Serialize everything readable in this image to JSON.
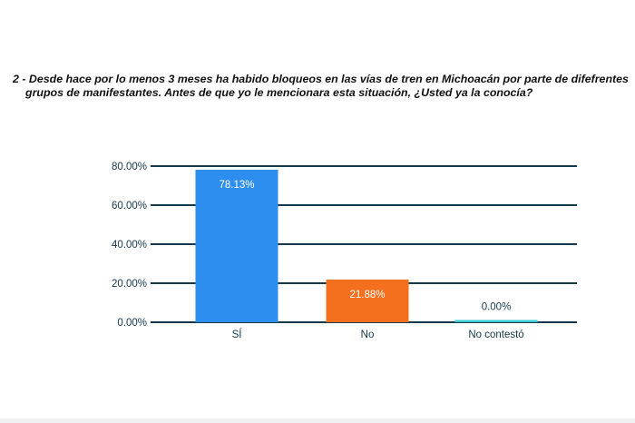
{
  "question": {
    "line1": "2 - Desde hace por lo menos 3 meses ha habido bloqueos en las vías de tren en Michoacán por parte de difefrentes",
    "line2": "grupos de manifestantes. Antes de que yo le mencionara esta situación, ¿Usted ya la conocía?"
  },
  "colors": {
    "gridline": "#14394b",
    "axis_text": "#14394b",
    "bar_label_on_bar": "#ffffff",
    "bar_label_above": "#14394b"
  },
  "chart_data": {
    "type": "bar",
    "categories": [
      "SÍ",
      "No",
      "No contestó"
    ],
    "values": [
      78.13,
      21.88,
      0.0
    ],
    "data_labels": [
      "78.13%",
      "21.88%",
      "0.00%"
    ],
    "bar_colors": [
      "#2e8ef0",
      "#f46f1e",
      "#3ecad0"
    ],
    "title": "",
    "xlabel": "",
    "ylabel": "",
    "ylim": [
      0,
      80
    ],
    "yticks": [
      0,
      20,
      40,
      60,
      80
    ],
    "ytick_labels": [
      "0.00%",
      "20.00%",
      "40.00%",
      "60.00%",
      "80.00%"
    ],
    "grid": true,
    "legend": "none"
  }
}
